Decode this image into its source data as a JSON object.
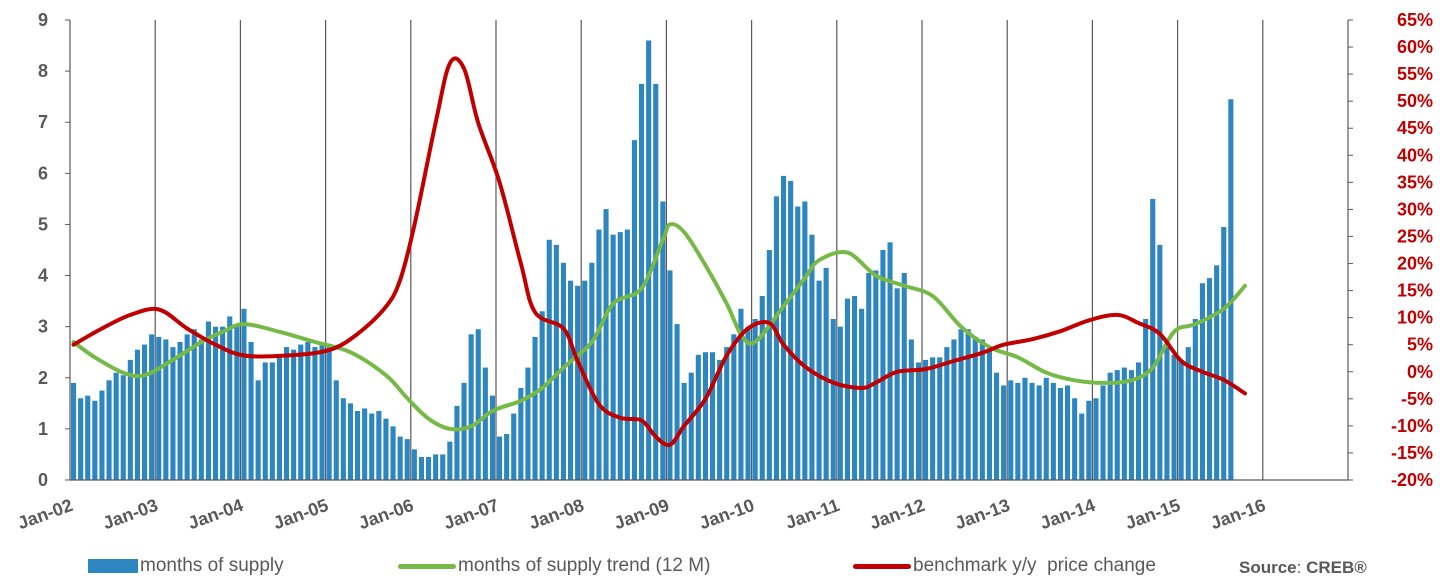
{
  "chart_data": {
    "type": "bar",
    "x_labels": [
      "Jan-02",
      "Jan-03",
      "Jan-04",
      "Jan-05",
      "Jan-06",
      "Jan-07",
      "Jan-08",
      "Jan-09",
      "Jan-10",
      "Jan-11",
      "Jan-12",
      "Jan-13",
      "Jan-14",
      "Jan-15",
      "Jan-16"
    ],
    "y_left": {
      "min": 0,
      "max": 9,
      "ticks": [
        "0",
        "1",
        "2",
        "3",
        "4",
        "5",
        "6",
        "7",
        "8",
        "9"
      ]
    },
    "y_right": {
      "min": -20,
      "max": 65,
      "ticks": [
        "-20%",
        "-15%",
        "-10%",
        "-5%",
        "0%",
        "5%",
        "10%",
        "15%",
        "20%",
        "25%",
        "30%",
        "35%",
        "40%",
        "45%",
        "50%",
        "55%",
        "60%",
        "65%"
      ]
    },
    "colors": {
      "bars": "#2e86c1",
      "trend": "#76b947",
      "price": "#c00000",
      "grid": "#595959",
      "axis_left": "#595959",
      "axis_right": "#c00000"
    },
    "series": [
      {
        "name": "months of supply",
        "type": "bar",
        "axis": "left",
        "values": [
          1.9,
          1.6,
          1.65,
          1.55,
          1.75,
          1.95,
          2.1,
          2.05,
          2.35,
          2.55,
          2.65,
          2.85,
          2.8,
          2.75,
          2.6,
          2.7,
          2.85,
          2.95,
          2.75,
          3.1,
          3.0,
          3.0,
          3.2,
          3.05,
          3.35,
          2.7,
          1.95,
          2.3,
          2.3,
          2.45,
          2.6,
          2.55,
          2.65,
          2.7,
          2.6,
          2.65,
          2.6,
          1.95,
          1.6,
          1.5,
          1.35,
          1.4,
          1.3,
          1.35,
          1.2,
          1.05,
          0.85,
          0.8,
          0.6,
          0.45,
          0.45,
          0.5,
          0.5,
          0.75,
          1.45,
          1.9,
          2.85,
          2.95,
          2.2,
          1.65,
          0.85,
          0.9,
          1.3,
          1.8,
          2.2,
          2.8,
          3.3,
          4.7,
          4.6,
          4.25,
          3.9,
          3.8,
          3.9,
          4.25,
          4.9,
          5.3,
          4.8,
          4.85,
          4.9,
          6.65,
          7.75,
          8.6,
          7.75,
          5.45,
          4.1,
          3.05,
          1.9,
          2.1,
          2.45,
          2.5,
          2.5,
          2.35,
          2.6,
          2.85,
          3.35,
          3.0,
          3.15,
          3.6,
          4.5,
          5.55,
          5.95,
          5.85,
          5.35,
          5.45,
          4.8,
          3.9,
          4.15,
          3.15,
          3.0,
          3.55,
          3.6,
          3.35,
          4.05,
          4.1,
          4.5,
          4.65,
          3.75,
          4.05,
          2.75,
          2.3,
          2.35,
          2.4,
          2.4,
          2.6,
          2.75,
          2.95,
          2.95,
          2.8,
          2.75,
          2.55,
          2.1,
          1.85,
          1.95,
          1.9,
          2.0,
          1.9,
          1.85,
          2.0,
          1.9,
          1.8,
          1.85,
          1.6,
          1.3,
          1.55,
          1.6,
          1.85,
          2.1,
          2.15,
          2.2,
          2.15,
          2.3,
          3.15,
          5.5,
          4.6,
          2.6,
          2.45,
          2.35,
          2.6,
          3.15,
          3.85,
          3.95,
          4.2,
          4.95,
          7.45
        ]
      },
      {
        "name": "months of supply trend (12 M)",
        "type": "line",
        "axis": "left",
        "points": [
          [
            0,
            2.7
          ],
          [
            3,
            2.4
          ],
          [
            7,
            2.1
          ],
          [
            10,
            2.05
          ],
          [
            14,
            2.35
          ],
          [
            18,
            2.7
          ],
          [
            21,
            2.9
          ],
          [
            24,
            3.05
          ],
          [
            29,
            2.9
          ],
          [
            34,
            2.7
          ],
          [
            39,
            2.5
          ],
          [
            44,
            2.05
          ],
          [
            47,
            1.6
          ],
          [
            50,
            1.2
          ],
          [
            53,
            1.0
          ],
          [
            56,
            1.05
          ],
          [
            59,
            1.35
          ],
          [
            63,
            1.55
          ],
          [
            66,
            1.8
          ],
          [
            69,
            2.2
          ],
          [
            73,
            2.7
          ],
          [
            76,
            3.45
          ],
          [
            80,
            3.75
          ],
          [
            83,
            4.7
          ],
          [
            84,
            5.0
          ],
          [
            86,
            4.85
          ],
          [
            89,
            4.2
          ],
          [
            92,
            3.45
          ],
          [
            94,
            2.85
          ],
          [
            96,
            2.7
          ],
          [
            100,
            3.4
          ],
          [
            103,
            3.95
          ],
          [
            105,
            4.3
          ],
          [
            109,
            4.45
          ],
          [
            113,
            4.0
          ],
          [
            117,
            3.8
          ],
          [
            121,
            3.6
          ],
          [
            125,
            3.0
          ],
          [
            129,
            2.6
          ],
          [
            133,
            2.4
          ],
          [
            137,
            2.1
          ],
          [
            141,
            1.95
          ],
          [
            145,
            1.9
          ],
          [
            149,
            1.95
          ],
          [
            152,
            2.2
          ],
          [
            155,
            2.9
          ],
          [
            158,
            3.05
          ],
          [
            162,
            3.35
          ],
          [
            165,
            3.8
          ]
        ]
      },
      {
        "name": "benchmark y/y  price change",
        "type": "line",
        "axis": "right",
        "points": [
          [
            0,
            5
          ],
          [
            4,
            8
          ],
          [
            8,
            10.5
          ],
          [
            12,
            11.5
          ],
          [
            16,
            8
          ],
          [
            20,
            5
          ],
          [
            24,
            3
          ],
          [
            30,
            3
          ],
          [
            36,
            4
          ],
          [
            40,
            7
          ],
          [
            44,
            12
          ],
          [
            46,
            17
          ],
          [
            48,
            27
          ],
          [
            51,
            46
          ],
          [
            53,
            57
          ],
          [
            55,
            56
          ],
          [
            57,
            46
          ],
          [
            60,
            35
          ],
          [
            63,
            20
          ],
          [
            65,
            11
          ],
          [
            69,
            8
          ],
          [
            71,
            2
          ],
          [
            74,
            -6
          ],
          [
            77,
            -8.5
          ],
          [
            80,
            -9
          ],
          [
            82,
            -12
          ],
          [
            84,
            -13.5
          ],
          [
            86,
            -10
          ],
          [
            89,
            -5
          ],
          [
            92,
            3
          ],
          [
            95,
            8
          ],
          [
            98,
            9
          ],
          [
            100,
            5
          ],
          [
            103,
            1
          ],
          [
            107,
            -2
          ],
          [
            111,
            -3
          ],
          [
            113,
            -2
          ],
          [
            116,
            0
          ],
          [
            120,
            0.5
          ],
          [
            124,
            2
          ],
          [
            128,
            3.5
          ],
          [
            131,
            5
          ],
          [
            135,
            6
          ],
          [
            139,
            7.5
          ],
          [
            143,
            9.5
          ],
          [
            147,
            10.5
          ],
          [
            150,
            9
          ],
          [
            153,
            7
          ],
          [
            156,
            2
          ],
          [
            159,
            0
          ],
          [
            162,
            -1.5
          ],
          [
            165,
            -4
          ]
        ]
      }
    ],
    "legend_position": "bottom",
    "grid": "vertical"
  },
  "source": {
    "label": "Source",
    "value": "CREB®"
  }
}
